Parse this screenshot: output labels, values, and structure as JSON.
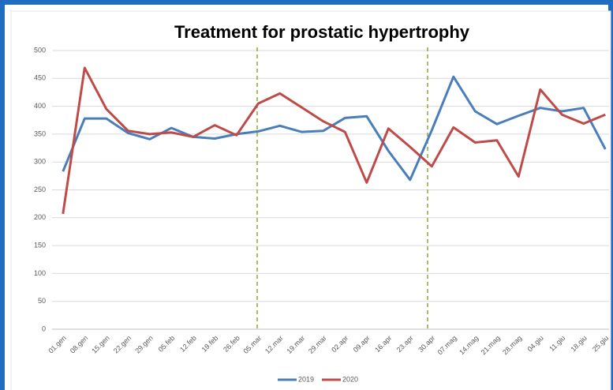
{
  "chart_data": {
    "type": "line",
    "title": "Treatment for prostatic hypertrophy",
    "categories": [
      "01.gen",
      "08.gen",
      "15.gen",
      "22.gen",
      "29.gen",
      "05.feb",
      "12.feb",
      "19.feb",
      "26.feb",
      "05.mar",
      "12.mar",
      "19.mar",
      "29.mar",
      "02.apr",
      "09.apr",
      "16.apr",
      "23.apr",
      "30.apr",
      "07.mag",
      "14.mag",
      "21.mag",
      "28.mag",
      "04.giu",
      "11.giu",
      "18.giu",
      "25.giu"
    ],
    "series": [
      {
        "name": "2019",
        "color": "#4a7ebb",
        "values": [
          283,
          378,
          378,
          352,
          341,
          361,
          345,
          342,
          350,
          355,
          365,
          354,
          356,
          379,
          382,
          320,
          268,
          357,
          453,
          391,
          368,
          383,
          397,
          391,
          397,
          323
        ]
      },
      {
        "name": "2020",
        "color": "#be4b48",
        "values": [
          207,
          469,
          395,
          356,
          350,
          353,
          345,
          366,
          348,
          405,
          423,
          398,
          373,
          354,
          263,
          360,
          327,
          292,
          362,
          335,
          339,
          274,
          430,
          385,
          369,
          385
        ]
      }
    ],
    "ylim": [
      0,
      500
    ],
    "yticks": [
      0,
      50,
      100,
      150,
      200,
      250,
      300,
      350,
      400,
      450,
      500
    ],
    "grid": true,
    "legend": "bottom"
  }
}
